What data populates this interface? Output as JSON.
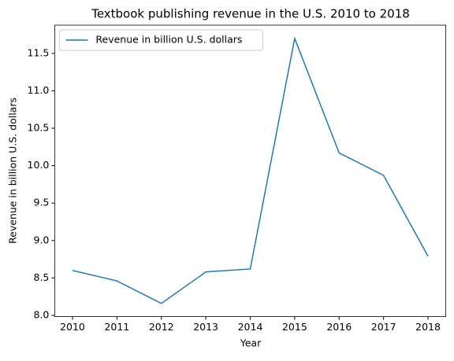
{
  "chart_data": {
    "type": "line",
    "title": "Textbook publishing revenue in the U.S. 2010 to 2018",
    "xlabel": "Year",
    "ylabel": "Revenue in billion U.S. dollars",
    "x": [
      2010,
      2011,
      2012,
      2013,
      2014,
      2015,
      2016,
      2017,
      2018
    ],
    "series": [
      {
        "name": "Revenue in billion U.S. dollars",
        "color": "#1f77b4",
        "values": [
          8.6,
          8.46,
          8.16,
          8.58,
          8.62,
          11.7,
          10.17,
          9.87,
          8.79
        ]
      }
    ],
    "xlim": [
      2009.6,
      2018.4
    ],
    "xticks": [
      2010,
      2011,
      2012,
      2013,
      2014,
      2015,
      2016,
      2017,
      2018
    ],
    "ylim": [
      7.983,
      11.877
    ],
    "yticks": [
      {
        "value": 8,
        "label": "8.0"
      },
      8.5,
      {
        "value": 9,
        "label": "9.0"
      },
      9.5,
      {
        "value": 10,
        "label": "10.0"
      },
      10.5,
      {
        "value": 11,
        "label": "11.0"
      },
      11.5
    ],
    "grid": false,
    "legend": "upper left"
  }
}
